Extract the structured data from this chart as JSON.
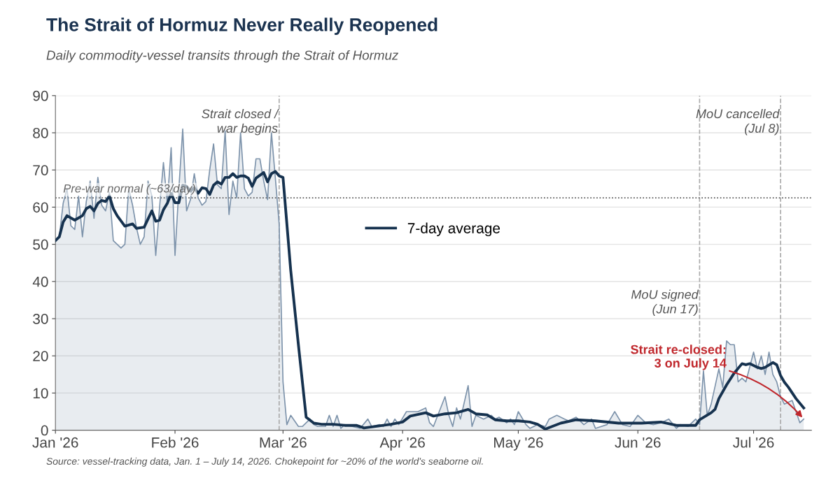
{
  "chart_data": {
    "type": "area",
    "title": "The Strait of Hormuz Never Really Reopened",
    "subtitle": "Daily commodity-vessel transits through the Strait of Hormuz",
    "xlim": [
      "2026-01-01",
      "2026-07-16"
    ],
    "ylim": [
      0,
      90
    ],
    "yticks": [
      0,
      10,
      20,
      30,
      40,
      50,
      60,
      70,
      80,
      90
    ],
    "xticks": [
      {
        "value": "2026-01-01",
        "label": "Jan '26"
      },
      {
        "value": "2026-02-01",
        "label": "Feb '26"
      },
      {
        "value": "2026-03-01",
        "label": "Mar '26"
      },
      {
        "value": "2026-04-01",
        "label": "Apr '26"
      },
      {
        "value": "2026-05-01",
        "label": "May '26"
      },
      {
        "value": "2026-06-01",
        "label": "Jun '26"
      },
      {
        "value": "2026-07-01",
        "label": "Jul '26"
      }
    ],
    "grid": "y",
    "legend": "center",
    "series": [
      {
        "color": "#7d93ab",
        "x": [
          "2026-01-01",
          "2026-01-02",
          "2026-01-03",
          "2026-01-04",
          "2026-01-05",
          "2026-01-06",
          "2026-01-07",
          "2026-01-08",
          "2026-01-09",
          "2026-01-10",
          "2026-01-11",
          "2026-01-12",
          "2026-01-13",
          "2026-01-14",
          "2026-01-15",
          "2026-01-16",
          "2026-01-18",
          "2026-01-19",
          "2026-01-20",
          "2026-01-21",
          "2026-01-22",
          "2026-01-23",
          "2026-01-24",
          "2026-01-25",
          "2026-01-26",
          "2026-01-27",
          "2026-01-28",
          "2026-01-29",
          "2026-01-30",
          "2026-01-31",
          "2026-02-01",
          "2026-02-02",
          "2026-02-03",
          "2026-02-04",
          "2026-02-05",
          "2026-02-06",
          "2026-02-07",
          "2026-02-08",
          "2026-02-09",
          "2026-02-10",
          "2026-02-11",
          "2026-02-12",
          "2026-02-13",
          "2026-02-14",
          "2026-02-15",
          "2026-02-16",
          "2026-02-17",
          "2026-02-18",
          "2026-02-19",
          "2026-02-20",
          "2026-02-21",
          "2026-02-22",
          "2026-02-23",
          "2026-02-24",
          "2026-02-25",
          "2026-02-26",
          "2026-02-27",
          "2026-02-28",
          "2026-03-01",
          "2026-03-02",
          "2026-03-03",
          "2026-03-05",
          "2026-03-06",
          "2026-03-08",
          "2026-03-09",
          "2026-03-10",
          "2026-03-11",
          "2026-03-12",
          "2026-03-13",
          "2026-03-14",
          "2026-03-15",
          "2026-03-16",
          "2026-03-17",
          "2026-03-19",
          "2026-03-21",
          "2026-03-23",
          "2026-03-24",
          "2026-03-26",
          "2026-03-27",
          "2026-03-28",
          "2026-03-29",
          "2026-03-30",
          "2026-03-31",
          "2026-04-02",
          "2026-04-05",
          "2026-04-07",
          "2026-04-08",
          "2026-04-09",
          "2026-04-12",
          "2026-04-13",
          "2026-04-14",
          "2026-04-15",
          "2026-04-16",
          "2026-04-18",
          "2026-04-19",
          "2026-04-20",
          "2026-04-21",
          "2026-04-22",
          "2026-04-24",
          "2026-04-25",
          "2026-04-26",
          "2026-04-28",
          "2026-04-29",
          "2026-04-30",
          "2026-05-01",
          "2026-05-03",
          "2026-05-04",
          "2026-05-06",
          "2026-05-08",
          "2026-05-09",
          "2026-05-11",
          "2026-05-13",
          "2026-05-14",
          "2026-05-16",
          "2026-05-18",
          "2026-05-20",
          "2026-05-21",
          "2026-05-24",
          "2026-05-26",
          "2026-05-28",
          "2026-05-30",
          "2026-06-01",
          "2026-06-03",
          "2026-06-05",
          "2026-06-07",
          "2026-06-09",
          "2026-06-11",
          "2026-06-12",
          "2026-06-14",
          "2026-06-16",
          "2026-06-17",
          "2026-06-18",
          "2026-06-19",
          "2026-06-20",
          "2026-06-22",
          "2026-06-23",
          "2026-06-24",
          "2026-06-25",
          "2026-06-26",
          "2026-06-27",
          "2026-06-28",
          "2026-06-29",
          "2026-07-01",
          "2026-07-02",
          "2026-07-03",
          "2026-07-04",
          "2026-07-05",
          "2026-07-06",
          "2026-07-07",
          "2026-07-08",
          "2026-07-09",
          "2026-07-11",
          "2026-07-12",
          "2026-07-13",
          "2026-07-14"
        ],
        "values": [
          51,
          52,
          61,
          65,
          55,
          54,
          63,
          52,
          61.5,
          67,
          57,
          68,
          60.5,
          59,
          64,
          51,
          49,
          50,
          65,
          60.5,
          54.5,
          50,
          52,
          67,
          63,
          47,
          60,
          72,
          61,
          76,
          47,
          65,
          81,
          59,
          62,
          69,
          62.5,
          60.5,
          61.5,
          70,
          77,
          66,
          65,
          80.5,
          58,
          67,
          62.5,
          80,
          65,
          63,
          64,
          73,
          73,
          67,
          62,
          80,
          68,
          55.5,
          13,
          1.5,
          4,
          1,
          1,
          3,
          1.5,
          1,
          1,
          1,
          4,
          1,
          4,
          0.5,
          1.5,
          1,
          0.5,
          3,
          1,
          1.5,
          1,
          3,
          1,
          3,
          1.5,
          5,
          5,
          6,
          2,
          1,
          9,
          4,
          1,
          6,
          3,
          12,
          1,
          4,
          3.5,
          3,
          4,
          3,
          3.5,
          2,
          3,
          1.5,
          5,
          1.5,
          0.5,
          1.5,
          1,
          3,
          4,
          3,
          2.5,
          3.5,
          1.5,
          3,
          0.5,
          1.5,
          5,
          1.5,
          1,
          4,
          2,
          1.5,
          2,
          3,
          0.5,
          1.5,
          1,
          3,
          1.5,
          16,
          4,
          7,
          16.5,
          11.5,
          24,
          23,
          23,
          13,
          14,
          13,
          21,
          16.5,
          20,
          15,
          21,
          15,
          13,
          9,
          7,
          8,
          5,
          2,
          3
        ]
      },
      {
        "type": "line",
        "name": "7-day average",
        "color": "#16324f",
        "x": [
          "2026-01-01",
          "2026-01-02",
          "2026-01-03",
          "2026-01-04",
          "2026-01-06",
          "2026-01-08",
          "2026-01-09",
          "2026-01-10",
          "2026-01-11",
          "2026-01-12",
          "2026-01-13",
          "2026-01-14",
          "2026-01-15",
          "2026-01-16",
          "2026-01-17",
          "2026-01-19",
          "2026-01-21",
          "2026-01-22",
          "2026-01-24",
          "2026-01-25",
          "2026-01-26",
          "2026-01-27",
          "2026-01-28",
          "2026-01-29",
          "2026-01-30",
          "2026-01-31",
          "2026-02-01",
          "2026-02-02",
          "2026-02-03",
          "2026-02-04",
          "2026-02-05",
          "2026-02-06",
          "2026-02-07",
          "2026-02-08",
          "2026-02-09",
          "2026-02-10",
          "2026-02-11",
          "2026-02-12",
          "2026-02-13",
          "2026-02-14",
          "2026-02-15",
          "2026-02-16",
          "2026-02-17",
          "2026-02-18",
          "2026-02-19",
          "2026-02-20",
          "2026-02-21",
          "2026-02-22",
          "2026-02-24",
          "2026-02-25",
          "2026-02-26",
          "2026-02-27",
          "2026-02-28",
          "2026-03-01",
          "2026-03-03",
          "2026-03-05",
          "2026-03-07",
          "2026-03-09",
          "2026-03-11",
          "2026-03-14",
          "2026-03-17",
          "2026-03-20",
          "2026-03-22",
          "2026-03-24",
          "2026-03-27",
          "2026-03-29",
          "2026-04-01",
          "2026-04-03",
          "2026-04-07",
          "2026-04-09",
          "2026-04-12",
          "2026-04-15",
          "2026-04-18",
          "2026-04-20",
          "2026-04-23",
          "2026-04-25",
          "2026-04-28",
          "2026-05-01",
          "2026-05-04",
          "2026-05-06",
          "2026-05-08",
          "2026-05-12",
          "2026-05-16",
          "2026-05-21",
          "2026-05-27",
          "2026-06-02",
          "2026-06-07",
          "2026-06-11",
          "2026-06-16",
          "2026-06-17",
          "2026-06-20",
          "2026-06-21",
          "2026-06-22",
          "2026-06-24",
          "2026-06-26",
          "2026-06-28",
          "2026-06-29",
          "2026-06-30",
          "2026-07-02",
          "2026-07-03",
          "2026-07-04",
          "2026-07-06",
          "2026-07-07",
          "2026-07-08",
          "2026-07-09",
          "2026-07-10",
          "2026-07-12",
          "2026-07-14"
        ],
        "values": [
          51,
          52,
          56,
          57.7,
          56.5,
          57.7,
          59.6,
          60.2,
          59,
          61,
          61.8,
          61.5,
          63,
          59.6,
          57.7,
          54.9,
          55.5,
          54.3,
          54.6,
          56.8,
          59,
          56.2,
          56.5,
          59.3,
          61,
          63.7,
          61.2,
          61.2,
          65.9,
          65.6,
          64.3,
          65.2,
          63.7,
          65.2,
          65,
          63.4,
          65.9,
          66.8,
          66.2,
          68,
          68,
          69,
          68,
          68.4,
          68.4,
          67.8,
          65.6,
          67.8,
          69.3,
          66.8,
          69,
          69.6,
          68.4,
          68,
          43,
          22.9,
          3.5,
          1.9,
          1.6,
          1.6,
          1.3,
          1.3,
          0.6,
          0.9,
          1.3,
          1.6,
          2.2,
          3.8,
          4.7,
          3.8,
          4.4,
          4.7,
          5.6,
          4.4,
          4.1,
          2.8,
          2.5,
          2.5,
          2.2,
          1.6,
          0.3,
          1.9,
          2.8,
          2.5,
          1.9,
          1.9,
          2.2,
          1.3,
          1.3,
          2.8,
          4.7,
          5.6,
          8.5,
          12.2,
          15.4,
          17.9,
          17.6,
          17.9,
          16.9,
          16.6,
          16.9,
          18.2,
          17.6,
          14.7,
          12.9,
          11.6,
          8.5,
          6
        ]
      }
    ],
    "ref_lines": [
      {
        "axis": "x",
        "value": "2026-02-28",
        "label": "Strait closed /\nwar begins",
        "color": "#aaaaaa",
        "line_style": "dashed"
      },
      {
        "axis": "x",
        "value": "2026-06-17",
        "label": "MoU signed\n(Jun 17)",
        "color": "#aaaaaa",
        "line_style": "dashed"
      },
      {
        "axis": "x",
        "value": "2026-07-08",
        "label": "MoU cancelled\n(Jul 8)",
        "color": "#aaaaaa",
        "line_style": "dashed"
      },
      {
        "axis": "y",
        "value": 62.5,
        "label": "Pre-war normal (~63/day)",
        "color": "#555555",
        "line_style": "dotted"
      }
    ],
    "annotations": [
      {
        "text": "Strait re-closed:\n3 on July 14",
        "x": "2026-07-14",
        "y": 3
      },
      "Source: vessel-tracking data, Jan. 1 – July 14, 2026. Chokepoint for ~20% of the world's seaborne oil."
    ]
  }
}
